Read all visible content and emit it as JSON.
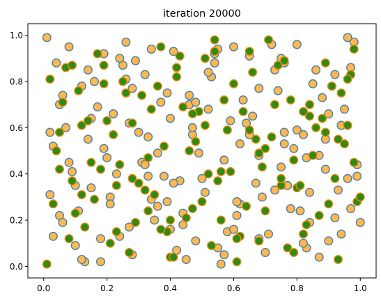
{
  "chart_data": {
    "type": "scatter",
    "title": "iteration 20000",
    "xlabel": "",
    "ylabel": "",
    "xlim": [
      -0.05,
      1.05
    ],
    "ylim": [
      -0.05,
      1.05
    ],
    "x_ticks": [
      0.0,
      0.2,
      0.4,
      0.6,
      0.8,
      1.0
    ],
    "x_tick_labels": [
      "0.0",
      "0.2",
      "0.4",
      "0.6",
      "0.8",
      "1.0"
    ],
    "y_ticks": [
      0.0,
      0.2,
      0.4,
      0.6,
      0.8,
      1.0
    ],
    "y_tick_labels": [
      "0.0",
      "0.2",
      "0.4",
      "0.6",
      "0.8",
      "1.0"
    ],
    "grid": false,
    "legend": false,
    "series": [
      {
        "marker_fill": "#ffb84d",
        "marker_edge": "#4a7fa7",
        "x": [
          0.01,
          0.03,
          0.05,
          0.08,
          0.12,
          0.15,
          0.18,
          0.22,
          0.25,
          0.28,
          0.31,
          0.34,
          0.37,
          0.41,
          0.44,
          0.47,
          0.5,
          0.53,
          0.56,
          0.59,
          0.62,
          0.65,
          0.68,
          0.71,
          0.74,
          0.77,
          0.8,
          0.83,
          0.86,
          0.89,
          0.92,
          0.95,
          0.98,
          0.02,
          0.06,
          0.1,
          0.14,
          0.19,
          0.23,
          0.27,
          0.32,
          0.36,
          0.4,
          0.45,
          0.49,
          0.54,
          0.58,
          0.63,
          0.67,
          0.72,
          0.76,
          0.81,
          0.85,
          0.9,
          0.94,
          0.99,
          0.04,
          0.09,
          0.13,
          0.17,
          0.21,
          0.26,
          0.3,
          0.35,
          0.39,
          0.43,
          0.48,
          0.52,
          0.57,
          0.61,
          0.66,
          0.7,
          0.75,
          0.79,
          0.84,
          0.88,
          0.93,
          0.97,
          0.07,
          0.11,
          0.16,
          0.2,
          0.24,
          0.29,
          0.33,
          0.38,
          0.42,
          0.46,
          0.51,
          0.55,
          0.6,
          0.64,
          0.69,
          0.73,
          0.78,
          0.82,
          0.87,
          0.91,
          0.96,
          1.0,
          0.03,
          0.08,
          0.14,
          0.21,
          0.27,
          0.34,
          0.41,
          0.48,
          0.55,
          0.62,
          0.69,
          0.76,
          0.83,
          0.9,
          0.97,
          0.05,
          0.12,
          0.19,
          0.26,
          0.33,
          0.4,
          0.47,
          0.54,
          0.61,
          0.68,
          0.75,
          0.82,
          0.89,
          0.96,
          0.02,
          0.1,
          0.18,
          0.28,
          0.36,
          0.44,
          0.52,
          0.6,
          0.68,
          0.76,
          0.84,
          0.92,
          0.99,
          0.06,
          0.15,
          0.24,
          0.32,
          0.39,
          0.46,
          0.57,
          0.65,
          0.73,
          0.8,
          0.87,
          0.94
        ],
        "y": [
          0.99,
          0.52,
          0.22,
          0.95,
          0.78,
          0.34,
          0.12,
          0.66,
          0.87,
          0.05,
          0.45,
          0.29,
          0.71,
          0.93,
          0.18,
          0.57,
          0.38,
          0.82,
          0.01,
          0.63,
          0.27,
          0.91,
          0.48,
          0.14,
          0.76,
          0.35,
          0.59,
          0.08,
          0.85,
          0.42,
          0.21,
          0.68,
          0.97,
          0.31,
          0.74,
          0.09,
          0.55,
          0.92,
          0.4,
          0.17,
          0.83,
          0.26,
          0.64,
          0.03,
          0.49,
          0.88,
          0.15,
          0.72,
          0.36,
          0.96,
          0.53,
          0.24,
          0.79,
          0.11,
          0.61,
          0.44,
          0.88,
          0.41,
          0.02,
          0.69,
          0.3,
          0.97,
          0.58,
          0.2,
          0.75,
          0.37,
          0.11,
          0.84,
          0.46,
          0.28,
          0.65,
          0.06,
          0.9,
          0.51,
          0.19,
          0.73,
          0.33,
          0.86,
          0.6,
          0.24,
          0.8,
          0.47,
          0.13,
          0.89,
          0.56,
          0.39,
          0.07,
          0.7,
          0.32,
          0.94,
          0.16,
          0.62,
          0.43,
          0.85,
          0.25,
          0.57,
          0.04,
          0.78,
          0.38,
          0.19,
          0.13,
          0.45,
          0.85,
          0.27,
          0.62,
          0.94,
          0.36,
          0.71,
          0.08,
          0.53,
          0.3,
          0.88,
          0.47,
          0.66,
          0.25,
          0.7,
          0.03,
          0.51,
          0.81,
          0.39,
          0.16,
          0.6,
          0.92,
          0.22,
          0.77,
          0.43,
          0.1,
          0.55,
          0.99,
          0.58,
          0.35,
          0.02,
          0.77,
          0.49,
          0.23,
          0.68,
          0.95,
          0.12,
          0.58,
          0.32,
          0.83,
          0.39,
          0.19,
          0.64,
          0.9,
          0.44,
          0.28,
          0.74,
          0.05,
          0.57,
          0.33,
          0.96,
          0.48,
          0.14
        ]
      },
      {
        "marker_fill": "#2e8b16",
        "marker_edge": "#ee8a10",
        "x": [
          0.02,
          0.05,
          0.09,
          0.13,
          0.17,
          0.2,
          0.24,
          0.27,
          0.31,
          0.35,
          0.38,
          0.42,
          0.45,
          0.49,
          0.53,
          0.56,
          0.6,
          0.64,
          0.67,
          0.71,
          0.75,
          0.78,
          0.82,
          0.85,
          0.89,
          0.93,
          0.96,
          0.99,
          0.04,
          0.08,
          0.11,
          0.16,
          0.22,
          0.25,
          0.29,
          0.33,
          0.37,
          0.4,
          0.44,
          0.47,
          0.51,
          0.55,
          0.58,
          0.62,
          0.66,
          0.69,
          0.73,
          0.77,
          0.8,
          0.84,
          0.87,
          0.91,
          0.95,
          0.98,
          0.03,
          0.07,
          0.12,
          0.18,
          0.21,
          0.26,
          0.3,
          0.34,
          0.39,
          0.43,
          0.48,
          0.52,
          0.57,
          0.61,
          0.65,
          0.7,
          0.74,
          0.79,
          0.83,
          0.88,
          0.92,
          0.97,
          0.06,
          0.1,
          0.15,
          0.19,
          0.23,
          0.28,
          0.32,
          0.36,
          0.41,
          0.46,
          0.5,
          0.54,
          0.59,
          0.63,
          0.68,
          0.72,
          0.76,
          0.81,
          0.86,
          0.9,
          0.94,
          1.0,
          0.01,
          0.14,
          0.28,
          0.42,
          0.56,
          0.7,
          0.84,
          0.98,
          0.09,
          0.23,
          0.37,
          0.51,
          0.65,
          0.79,
          0.93,
          0.05,
          0.19,
          0.33,
          0.47,
          0.61,
          0.75,
          0.89,
          0.12,
          0.26,
          0.4,
          0.54,
          0.68,
          0.82,
          0.96
        ],
        "y": [
          0.81,
          0.58,
          0.37,
          0.17,
          0.92,
          0.63,
          0.44,
          0.06,
          0.74,
          0.31,
          0.52,
          0.86,
          0.21,
          0.67,
          0.09,
          0.41,
          0.79,
          0.26,
          0.55,
          0.98,
          0.35,
          0.72,
          0.14,
          0.48,
          0.88,
          0.03,
          0.61,
          0.28,
          0.5,
          0.12,
          0.76,
          0.29,
          0.57,
          0.8,
          0.19,
          0.47,
          0.95,
          0.04,
          0.69,
          0.25,
          0.9,
          0.37,
          0.59,
          0.13,
          0.84,
          0.43,
          0.7,
          0.08,
          0.34,
          0.65,
          0.22,
          0.78,
          0.53,
          0.94,
          0.27,
          0.86,
          0.61,
          0.42,
          0.1,
          0.75,
          0.36,
          0.68,
          0.15,
          0.91,
          0.54,
          0.4,
          0.72,
          0.02,
          0.59,
          0.24,
          0.87,
          0.46,
          0.18,
          0.64,
          0.38,
          0.83,
          0.71,
          0.23,
          0.45,
          0.87,
          0.15,
          0.62,
          0.33,
          0.78,
          0.04,
          0.5,
          0.28,
          0.93,
          0.41,
          0.67,
          0.11,
          0.56,
          0.89,
          0.35,
          0.6,
          0.27,
          0.75,
          0.3,
          0.01,
          0.63,
          0.38,
          0.82,
          0.2,
          0.51,
          0.7,
          0.45,
          0.87,
          0.35,
          0.16,
          0.61,
          0.93,
          0.06,
          0.55,
          0.42,
          0.79,
          0.24,
          0.66,
          0.12,
          0.38,
          0.58,
          0.31,
          0.75,
          0.2,
          0.98,
          0.49,
          0.67,
          0.81
        ]
      }
    ]
  }
}
